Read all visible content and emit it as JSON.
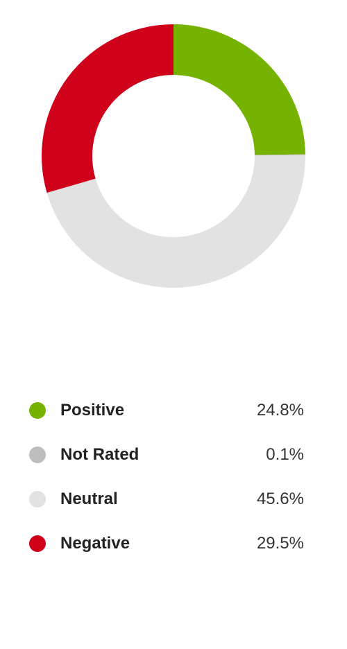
{
  "chart_data": {
    "type": "pie",
    "variant": "donut",
    "title": "",
    "unit": "%",
    "categories": [
      "Positive",
      "Not Rated",
      "Neutral",
      "Negative"
    ],
    "values": [
      24.8,
      0.1,
      45.6,
      29.5
    ],
    "value_labels": [
      "24.8%",
      "0.1%",
      "45.6%",
      "29.5%"
    ],
    "colors": [
      "#76b300",
      "#bdbdbd",
      "#e2e2e2",
      "#d0021b"
    ],
    "legend_position": "bottom",
    "start_angle": "top",
    "direction": "clockwise"
  }
}
